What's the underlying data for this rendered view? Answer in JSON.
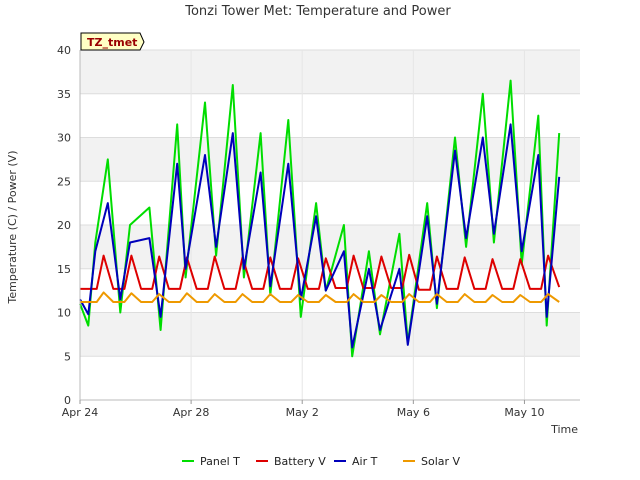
{
  "chart_data": {
    "type": "line",
    "title": "Tonzi Tower Met: Temperature and Power",
    "xlabel": "Time",
    "ylabel": "Temperature (C) / Power (V)",
    "badge": "TZ_tmet",
    "xlim": [
      0,
      18
    ],
    "ylim": [
      0,
      40
    ],
    "yticks": [
      0,
      5,
      10,
      15,
      20,
      25,
      30,
      35,
      40
    ],
    "xticks": [
      {
        "value": 0,
        "label": "Apr 24"
      },
      {
        "value": 4,
        "label": "Apr 28"
      },
      {
        "value": 8,
        "label": "May 2"
      },
      {
        "value": 12,
        "label": "May 6"
      },
      {
        "value": 16,
        "label": "May 10"
      }
    ],
    "legend_position": "bottom",
    "series": [
      {
        "name": "Panel T",
        "color": "#00dd00",
        "x": [
          0,
          0.3,
          0.55,
          1.0,
          1.45,
          1.8,
          2.5,
          2.9,
          3.5,
          3.8,
          4.5,
          4.9,
          5.5,
          5.9,
          6.5,
          6.85,
          7.5,
          7.95,
          8.5,
          8.85,
          9.5,
          9.8,
          10.4,
          10.8,
          11.5,
          11.8,
          12.5,
          12.85,
          13.5,
          13.9,
          14.5,
          14.9,
          15.5,
          15.9,
          16.5,
          16.8,
          17.25
        ],
        "values": [
          11,
          8.5,
          18,
          27.5,
          10,
          20,
          22,
          8,
          31.5,
          14,
          34,
          16.5,
          36,
          14,
          30.5,
          12,
          32,
          9.5,
          22.5,
          12.5,
          20,
          5,
          17,
          7.5,
          19,
          6.5,
          22.5,
          10.5,
          30,
          17.5,
          35,
          18,
          36.5,
          15.5,
          32.5,
          8.5,
          30.5
        ]
      },
      {
        "name": "Battery V",
        "color": "#dd0000",
        "x": [
          0,
          0.6,
          0.85,
          1.2,
          1.6,
          1.85,
          2.2,
          2.6,
          2.85,
          3.2,
          3.6,
          3.85,
          4.2,
          4.6,
          4.85,
          5.2,
          5.6,
          5.85,
          6.2,
          6.6,
          6.85,
          7.2,
          7.6,
          7.85,
          8.2,
          8.6,
          8.85,
          9.2,
          9.6,
          9.85,
          10.2,
          10.6,
          10.85,
          11.2,
          11.6,
          11.85,
          12.2,
          12.6,
          12.85,
          13.2,
          13.6,
          13.85,
          14.2,
          14.6,
          14.85,
          15.2,
          15.6,
          15.85,
          16.2,
          16.6,
          16.85,
          17.25
        ],
        "values": [
          12.7,
          12.7,
          16.5,
          12.7,
          12.7,
          16.5,
          12.7,
          12.7,
          16.4,
          12.7,
          12.7,
          16.3,
          12.7,
          12.7,
          16.4,
          12.7,
          12.7,
          16.3,
          12.7,
          12.7,
          16.3,
          12.7,
          12.7,
          16.2,
          12.7,
          12.7,
          16.2,
          12.8,
          12.8,
          16.5,
          12.8,
          12.8,
          16.4,
          12.8,
          12.8,
          16.6,
          12.6,
          12.6,
          16.4,
          12.7,
          12.7,
          16.3,
          12.7,
          12.7,
          16.1,
          12.7,
          12.7,
          16.1,
          12.7,
          12.7,
          16.5,
          12.9
        ]
      },
      {
        "name": "Air T",
        "color": "#0000bb",
        "x": [
          0,
          0.3,
          0.55,
          1.0,
          1.45,
          1.8,
          2.5,
          2.9,
          3.5,
          3.8,
          4.5,
          4.9,
          5.5,
          5.9,
          6.5,
          6.85,
          7.5,
          7.95,
          8.5,
          8.85,
          9.5,
          9.8,
          10.4,
          10.8,
          11.5,
          11.8,
          12.5,
          12.85,
          13.5,
          13.9,
          14.5,
          14.9,
          15.5,
          15.9,
          16.5,
          16.8,
          17.25
        ],
        "values": [
          11.5,
          9.8,
          17,
          22.5,
          11.5,
          18,
          18.5,
          9.5,
          27,
          15,
          28,
          17.5,
          30.5,
          15,
          26,
          13,
          27,
          11.5,
          21,
          12.5,
          17,
          6,
          15,
          8,
          15,
          6.3,
          21,
          11,
          28.5,
          18.5,
          30,
          19,
          31.5,
          17,
          28,
          9.5,
          25.5
        ]
      },
      {
        "name": "Solar V",
        "color": "#ee9900",
        "x": [
          0,
          0.6,
          0.85,
          1.2,
          1.6,
          1.85,
          2.2,
          2.6,
          2.85,
          3.2,
          3.6,
          3.85,
          4.2,
          4.6,
          4.85,
          5.2,
          5.6,
          5.85,
          6.2,
          6.6,
          6.85,
          7.2,
          7.6,
          7.85,
          8.2,
          8.6,
          8.85,
          9.2,
          9.6,
          9.85,
          10.2,
          10.6,
          10.85,
          11.2,
          11.6,
          11.85,
          12.2,
          12.6,
          12.85,
          13.2,
          13.6,
          13.85,
          14.2,
          14.6,
          14.85,
          15.2,
          15.6,
          15.85,
          16.2,
          16.6,
          16.85,
          17.25
        ],
        "values": [
          11.2,
          11.2,
          12.3,
          11.2,
          11.2,
          12.2,
          11.2,
          11.2,
          12.1,
          11.2,
          11.2,
          12.2,
          11.2,
          11.2,
          12.1,
          11.2,
          11.2,
          12.1,
          11.2,
          11.2,
          12.1,
          11.2,
          11.2,
          12.0,
          11.2,
          11.2,
          12.0,
          11.2,
          11.2,
          12.1,
          11.2,
          11.2,
          12.0,
          11.2,
          11.2,
          12.1,
          11.2,
          11.2,
          12.1,
          11.2,
          11.2,
          12.1,
          11.2,
          11.2,
          12.0,
          11.2,
          11.2,
          12.0,
          11.2,
          11.2,
          12.1,
          11.2
        ]
      }
    ]
  }
}
